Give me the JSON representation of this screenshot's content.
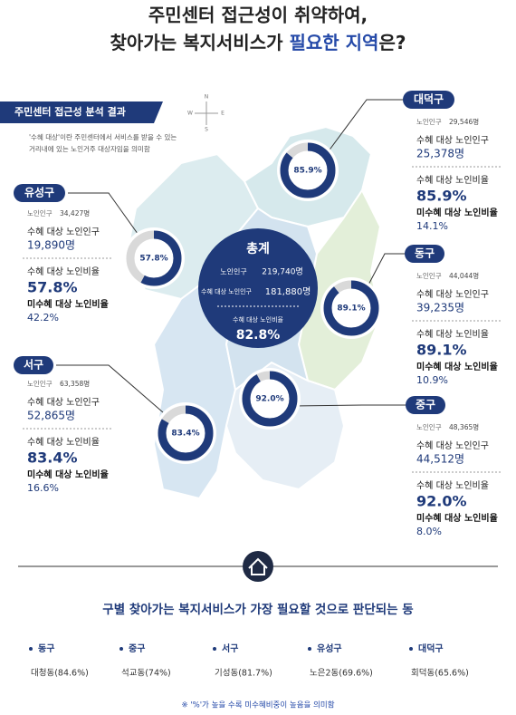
{
  "header": {
    "title_line1": "주민센터 접근성이 취약하여,",
    "title_line2_a": "찾아가는 복지서비스가 ",
    "title_line2_highlight": "필요한 지역",
    "title_line2_b": "은?"
  },
  "analysis": {
    "title": "주민센터 접근성 분석 결과",
    "note_line1": "'수혜 대상'이란 주민센터에서 서비스를 받을 수 있는",
    "note_line2": "거리내에 있는 노인거주 대상자임을 의미함"
  },
  "compass": {
    "n": "N",
    "s": "S",
    "e": "E",
    "w": "W"
  },
  "labels": {
    "population": "노인인구",
    "served_population": "수혜 대상 노인인구",
    "served_ratio": "수혜 대상 노인비율",
    "unserved_ratio": "미수혜 대상 노인비율"
  },
  "total": {
    "name": "총계",
    "population": "219,740명",
    "served_population": "181,880명",
    "served_ratio": "82.8%"
  },
  "districts": [
    {
      "name": "대덕구",
      "population": "29,546명",
      "served_population": "25,378명",
      "served_ratio": {
        "value": 85.9,
        "label": "85.9%"
      },
      "unserved_ratio": "14.1%"
    },
    {
      "name": "유성구",
      "population": "34,427명",
      "served_population": "19,890명",
      "served_ratio": {
        "value": 57.8,
        "label": "57.8%"
      },
      "unserved_ratio": "42.2%"
    },
    {
      "name": "동구",
      "population": "44,044명",
      "served_population": "39,235명",
      "served_ratio": {
        "value": 89.1,
        "label": "89.1%"
      },
      "unserved_ratio": "10.9%"
    },
    {
      "name": "서구",
      "population": "63,358명",
      "served_population": "52,865명",
      "served_ratio": {
        "value": 83.4,
        "label": "83.4%"
      },
      "unserved_ratio": "16.6%"
    },
    {
      "name": "중구",
      "population": "48,365명",
      "served_population": "44,512명",
      "served_ratio": {
        "value": 92.0,
        "label": "92.0%"
      },
      "unserved_ratio": "8.0%"
    }
  ],
  "needs": {
    "title": "구별 찾아가는 복지서비스가 가장 필요할 것으로 판단되는 동",
    "items": [
      {
        "district": "동구",
        "dong": "대청동(84.6%)"
      },
      {
        "district": "중구",
        "dong": "석교동(74%)"
      },
      {
        "district": "서구",
        "dong": "기성동(81.7%)"
      },
      {
        "district": "유성구",
        "dong": "노은2동(69.6%)"
      },
      {
        "district": "대덕구",
        "dong": "회덕동(65.6%)"
      }
    ],
    "footnote": "※ '%'가 높을 수록 미수혜비중이 높음을 의미함"
  }
}
